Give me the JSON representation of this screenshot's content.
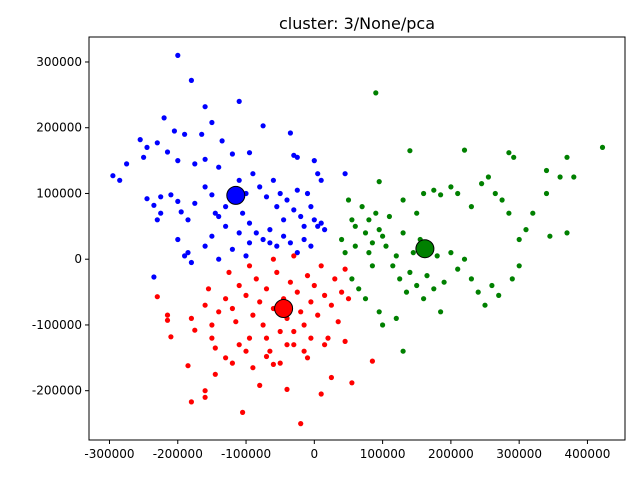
{
  "chart_data": {
    "type": "scatter",
    "title": "cluster: 3/None/pca",
    "xlabel": "",
    "ylabel": "",
    "xlim": [
      -330000,
      455000
    ],
    "ylim": [
      -275000,
      338000
    ],
    "xticks": [
      -300000,
      -200000,
      -100000,
      0,
      100000,
      200000,
      300000,
      400000
    ],
    "yticks": [
      -200000,
      -100000,
      0,
      100000,
      200000,
      300000
    ],
    "grid": false,
    "colors": {
      "cluster_blue": "#0000ff",
      "cluster_red": "#ff0000",
      "cluster_green": "#008000",
      "centroid_edge": "#000000"
    },
    "series": [
      {
        "color": "#0000ff",
        "points": [
          [
            -200000,
            310000
          ],
          [
            -180000,
            272000
          ],
          [
            -220000,
            215000
          ],
          [
            -160000,
            232000
          ],
          [
            -110000,
            240000
          ],
          [
            -75000,
            203000
          ],
          [
            -35000,
            192000
          ],
          [
            -205000,
            195000
          ],
          [
            -190000,
            190000
          ],
          [
            -150000,
            208000
          ],
          [
            -165000,
            190000
          ],
          [
            -135000,
            180000
          ],
          [
            -255000,
            182000
          ],
          [
            -275000,
            145000
          ],
          [
            -285000,
            120000
          ],
          [
            -295000,
            127000
          ],
          [
            -245000,
            170000
          ],
          [
            -230000,
            177000
          ],
          [
            -250000,
            155000
          ],
          [
            -215000,
            163000
          ],
          [
            -200000,
            150000
          ],
          [
            -175000,
            145000
          ],
          [
            -160000,
            152000
          ],
          [
            -140000,
            140000
          ],
          [
            -120000,
            160000
          ],
          [
            -95000,
            162000
          ],
          [
            -30000,
            158000
          ],
          [
            -25000,
            155000
          ],
          [
            0,
            150000
          ],
          [
            5000,
            130000
          ],
          [
            10000,
            120000
          ],
          [
            45000,
            130000
          ],
          [
            -245000,
            92000
          ],
          [
            -235000,
            82000
          ],
          [
            -225000,
            95000
          ],
          [
            -210000,
            98000
          ],
          [
            -200000,
            88000
          ],
          [
            -195000,
            72000
          ],
          [
            -225000,
            70000
          ],
          [
            -230000,
            60000
          ],
          [
            -185000,
            60000
          ],
          [
            -175000,
            85000
          ],
          [
            -160000,
            110000
          ],
          [
            -150000,
            98000
          ],
          [
            -145000,
            70000
          ],
          [
            -140000,
            65000
          ],
          [
            -130000,
            80000
          ],
          [
            -120000,
            92000
          ],
          [
            -110000,
            120000
          ],
          [
            -100000,
            100000
          ],
          [
            -90000,
            130000
          ],
          [
            -80000,
            110000
          ],
          [
            -70000,
            95000
          ],
          [
            -60000,
            120000
          ],
          [
            -55000,
            80000
          ],
          [
            -50000,
            100000
          ],
          [
            -45000,
            60000
          ],
          [
            -40000,
            90000
          ],
          [
            -30000,
            75000
          ],
          [
            -25000,
            105000
          ],
          [
            -20000,
            65000
          ],
          [
            -15000,
            50000
          ],
          [
            -10000,
            100000
          ],
          [
            -5000,
            80000
          ],
          [
            0,
            60000
          ],
          [
            5000,
            50000
          ],
          [
            10000,
            55000
          ],
          [
            15000,
            45000
          ],
          [
            -105000,
            70000
          ],
          [
            -95000,
            55000
          ],
          [
            -85000,
            40000
          ],
          [
            -75000,
            30000
          ],
          [
            -65000,
            45000
          ],
          [
            -55000,
            20000
          ],
          [
            -45000,
            35000
          ],
          [
            -35000,
            25000
          ],
          [
            -25000,
            10000
          ],
          [
            -15000,
            30000
          ],
          [
            -200000,
            30000
          ],
          [
            -190000,
            5000
          ],
          [
            -180000,
            -5000
          ],
          [
            -160000,
            20000
          ],
          [
            -150000,
            35000
          ],
          [
            -140000,
            0
          ],
          [
            -130000,
            50000
          ],
          [
            -120000,
            15000
          ],
          [
            -110000,
            40000
          ],
          [
            -100000,
            5000
          ],
          [
            -235000,
            -27000
          ],
          [
            -185000,
            10000
          ],
          [
            -95000,
            25000
          ],
          [
            -65000,
            25000
          ],
          [
            -5000,
            20000
          ]
        ]
      },
      {
        "color": "#ff0000",
        "points": [
          [
            -230000,
            -57000
          ],
          [
            -215000,
            -85000
          ],
          [
            -215000,
            -93000
          ],
          [
            -210000,
            -118000
          ],
          [
            -180000,
            -90000
          ],
          [
            -175000,
            -108000
          ],
          [
            -160000,
            -70000
          ],
          [
            -150000,
            -100000
          ],
          [
            -145000,
            -135000
          ],
          [
            -140000,
            -80000
          ],
          [
            -130000,
            -60000
          ],
          [
            -120000,
            -75000
          ],
          [
            -115000,
            -95000
          ],
          [
            -110000,
            -40000
          ],
          [
            -100000,
            -55000
          ],
          [
            -95000,
            -120000
          ],
          [
            -90000,
            -85000
          ],
          [
            -85000,
            -30000
          ],
          [
            -80000,
            -65000
          ],
          [
            -75000,
            -100000
          ],
          [
            -70000,
            -45000
          ],
          [
            -65000,
            -140000
          ],
          [
            -60000,
            -75000
          ],
          [
            -55000,
            -20000
          ],
          [
            -50000,
            -110000
          ],
          [
            -45000,
            -60000
          ],
          [
            -40000,
            -90000
          ],
          [
            -35000,
            -35000
          ],
          [
            -30000,
            -130000
          ],
          [
            -25000,
            -50000
          ],
          [
            -20000,
            -80000
          ],
          [
            -15000,
            -100000
          ],
          [
            -10000,
            -25000
          ],
          [
            -5000,
            -65000
          ],
          [
            0,
            -40000
          ],
          [
            5000,
            -85000
          ],
          [
            10000,
            -10000
          ],
          [
            15000,
            -55000
          ],
          [
            20000,
            -120000
          ],
          [
            25000,
            -70000
          ],
          [
            30000,
            -30000
          ],
          [
            35000,
            -95000
          ],
          [
            40000,
            -50000
          ],
          [
            45000,
            -15000
          ],
          [
            50000,
            -60000
          ],
          [
            -185000,
            -162000
          ],
          [
            -180000,
            -217000
          ],
          [
            -160000,
            -200000
          ],
          [
            -160000,
            -210000
          ],
          [
            -145000,
            -175000
          ],
          [
            -120000,
            -158000
          ],
          [
            -105000,
            -233000
          ],
          [
            -90000,
            -165000
          ],
          [
            -80000,
            -192000
          ],
          [
            -70000,
            -148000
          ],
          [
            -50000,
            -158000
          ],
          [
            -40000,
            -198000
          ],
          [
            -20000,
            -250000
          ],
          [
            -10000,
            -150000
          ],
          [
            10000,
            -205000
          ],
          [
            25000,
            -180000
          ],
          [
            55000,
            -188000
          ],
          [
            85000,
            -155000
          ],
          [
            -130000,
            -150000
          ],
          [
            -100000,
            -140000
          ],
          [
            -70000,
            -120000
          ],
          [
            -40000,
            -130000
          ],
          [
            -15000,
            -140000
          ],
          [
            15000,
            -130000
          ],
          [
            45000,
            -125000
          ],
          [
            -155000,
            -45000
          ],
          [
            -125000,
            -20000
          ],
          [
            -95000,
            -10000
          ],
          [
            -60000,
            0
          ],
          [
            -30000,
            5000
          ],
          [
            -150000,
            -120000
          ],
          [
            -110000,
            -130000
          ],
          [
            -60000,
            -160000
          ],
          [
            -30000,
            -110000
          ],
          [
            -5000,
            -120000
          ]
        ]
      },
      {
        "color": "#008000",
        "points": [
          [
            90000,
            253000
          ],
          [
            140000,
            165000
          ],
          [
            220000,
            166000
          ],
          [
            285000,
            162000
          ],
          [
            292000,
            155000
          ],
          [
            370000,
            155000
          ],
          [
            422000,
            170000
          ],
          [
            340000,
            135000
          ],
          [
            360000,
            125000
          ],
          [
            380000,
            125000
          ],
          [
            95000,
            118000
          ],
          [
            130000,
            90000
          ],
          [
            150000,
            70000
          ],
          [
            160000,
            100000
          ],
          [
            175000,
            105000
          ],
          [
            185000,
            98000
          ],
          [
            200000,
            110000
          ],
          [
            210000,
            100000
          ],
          [
            230000,
            80000
          ],
          [
            245000,
            115000
          ],
          [
            255000,
            125000
          ],
          [
            265000,
            100000
          ],
          [
            275000,
            90000
          ],
          [
            285000,
            70000
          ],
          [
            300000,
            30000
          ],
          [
            310000,
            45000
          ],
          [
            320000,
            70000
          ],
          [
            340000,
            100000
          ],
          [
            345000,
            35000
          ],
          [
            370000,
            40000
          ],
          [
            50000,
            90000
          ],
          [
            55000,
            60000
          ],
          [
            60000,
            50000
          ],
          [
            70000,
            80000
          ],
          [
            75000,
            40000
          ],
          [
            80000,
            60000
          ],
          [
            85000,
            25000
          ],
          [
            90000,
            70000
          ],
          [
            95000,
            45000
          ],
          [
            100000,
            35000
          ],
          [
            105000,
            20000
          ],
          [
            110000,
            65000
          ],
          [
            115000,
            -10000
          ],
          [
            120000,
            5000
          ],
          [
            125000,
            -30000
          ],
          [
            130000,
            40000
          ],
          [
            135000,
            -50000
          ],
          [
            140000,
            -20000
          ],
          [
            145000,
            10000
          ],
          [
            150000,
            -40000
          ],
          [
            155000,
            30000
          ],
          [
            160000,
            -60000
          ],
          [
            165000,
            -25000
          ],
          [
            170000,
            15000
          ],
          [
            175000,
            -45000
          ],
          [
            180000,
            5000
          ],
          [
            185000,
            -80000
          ],
          [
            190000,
            -35000
          ],
          [
            200000,
            10000
          ],
          [
            210000,
            -15000
          ],
          [
            220000,
            0
          ],
          [
            230000,
            -30000
          ],
          [
            240000,
            -50000
          ],
          [
            250000,
            -70000
          ],
          [
            260000,
            -40000
          ],
          [
            270000,
            -55000
          ],
          [
            290000,
            -30000
          ],
          [
            300000,
            -10000
          ],
          [
            40000,
            30000
          ],
          [
            45000,
            10000
          ],
          [
            55000,
            -30000
          ],
          [
            65000,
            -45000
          ],
          [
            75000,
            -60000
          ],
          [
            85000,
            -10000
          ],
          [
            95000,
            -80000
          ],
          [
            120000,
            -90000
          ],
          [
            130000,
            -140000
          ],
          [
            100000,
            -100000
          ],
          [
            80000,
            10000
          ],
          [
            60000,
            20000
          ]
        ]
      }
    ],
    "centroids": [
      {
        "color": "#0000ff",
        "x": -115000,
        "y": 97000
      },
      {
        "color": "#ff0000",
        "x": -45000,
        "y": -75000
      },
      {
        "color": "#008000",
        "x": 162000,
        "y": 16000
      }
    ]
  }
}
